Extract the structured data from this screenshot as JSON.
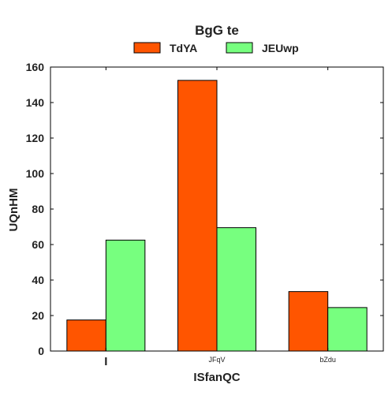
{
  "chart_data": {
    "type": "bar",
    "title": "BgG  te",
    "xlabel": "ISfanQC",
    "ylabel": "UQnHM",
    "categories": [
      "I",
      "JFqV",
      "bZdu"
    ],
    "series": [
      {
        "name": "TdYA",
        "values": [
          17.5,
          152.5,
          33.5
        ],
        "color": "#ff5500"
      },
      {
        "name": "JEUwp",
        "values": [
          62.5,
          69.5,
          24.5
        ],
        "color": "#77ff7f"
      }
    ],
    "ylim": [
      0,
      160
    ],
    "yticks": [
      0,
      20,
      40,
      60,
      80,
      100,
      120,
      140,
      160
    ],
    "grid": false,
    "legend_position": "top-center"
  }
}
